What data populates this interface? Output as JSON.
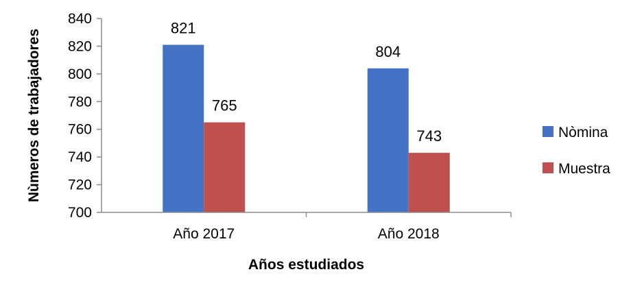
{
  "chart_data": {
    "type": "bar",
    "categories": [
      "Año 2017",
      "Año 2018"
    ],
    "series": [
      {
        "name": "Nòmina",
        "values": [
          821,
          804
        ],
        "color": "#4472C4"
      },
      {
        "name": "Muestra",
        "values": [
          765,
          743
        ],
        "color": "#C0504D"
      }
    ],
    "title": "",
    "xlabel": "Años estudiados",
    "ylabel": "Nùmeros de trabajadores",
    "ylim": [
      700,
      840
    ],
    "yticks": [
      700,
      720,
      740,
      760,
      780,
      800,
      820,
      840
    ],
    "grid": false,
    "legend_position": "right"
  }
}
